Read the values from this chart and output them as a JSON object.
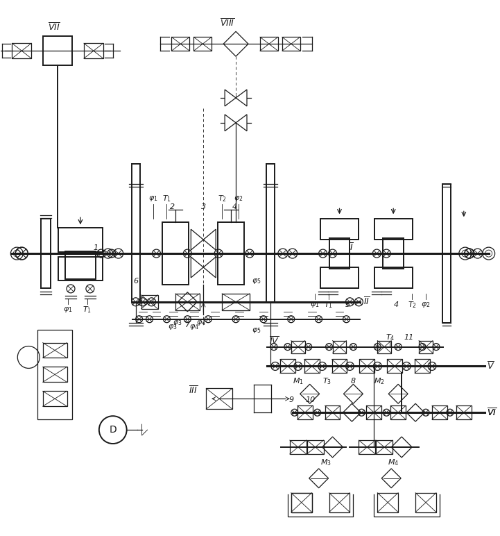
{
  "bg_color": "#ffffff",
  "line_color": "#1a1a1a",
  "fig_width": 7.21,
  "fig_height": 7.72,
  "dpi": 100
}
